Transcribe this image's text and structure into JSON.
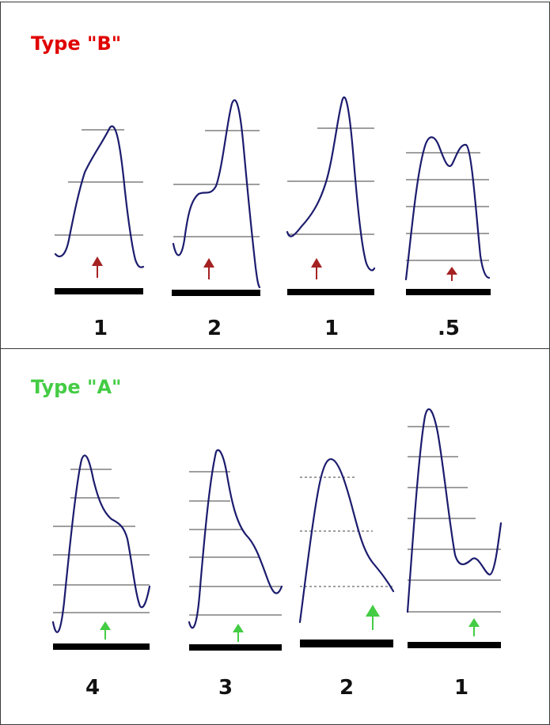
{
  "panels": [
    {
      "title": "Type \"B\"",
      "title_color": "#e00000",
      "arrow_color": "#a52222",
      "items": [
        {
          "value": "1"
        },
        {
          "value": "2"
        },
        {
          "value": "1"
        },
        {
          "value": ".5"
        }
      ]
    },
    {
      "title": "Type \"A\"",
      "title_color": "#44cc44",
      "arrow_color": "#44cc44",
      "items": [
        {
          "value": "4"
        },
        {
          "value": "3"
        },
        {
          "value": "2"
        },
        {
          "value": "1"
        }
      ]
    }
  ],
  "colors": {
    "curve": "#1c1c6e",
    "gridline": "#666666",
    "baseline": "#000000",
    "border": "#3a3a3a"
  }
}
